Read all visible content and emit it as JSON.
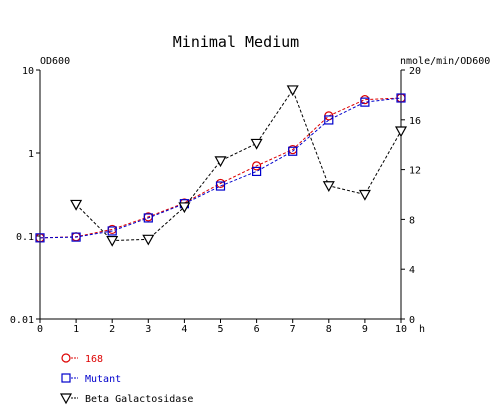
{
  "chart_data": {
    "type": "line",
    "title": "Minimal Medium",
    "x_unit": "h",
    "x": [
      0,
      1,
      2,
      3,
      4,
      5,
      6,
      7,
      8,
      9,
      10
    ],
    "xlim": [
      0,
      10
    ],
    "x_ticks": [
      "0",
      "1",
      "2",
      "3",
      "4",
      "5",
      "6",
      "7",
      "8",
      "9",
      "10"
    ],
    "y_left": {
      "label": "OD600",
      "scale": "log",
      "range": [
        0.01,
        10
      ],
      "ticks": [
        {
          "value": 0.01,
          "label": "0.01"
        },
        {
          "value": 0.1,
          "label": "0.1"
        },
        {
          "value": 1,
          "label": "1"
        },
        {
          "value": 10,
          "label": "10"
        }
      ]
    },
    "y_right": {
      "label": "nmole/min/OD600",
      "scale": "linear",
      "range": [
        0,
        20
      ],
      "ticks": [
        {
          "value": 0,
          "label": "0"
        },
        {
          "value": 4,
          "label": "4"
        },
        {
          "value": 8,
          "label": "8"
        },
        {
          "value": 12,
          "label": "12"
        },
        {
          "value": 16,
          "label": "16"
        },
        {
          "value": 20,
          "label": "20"
        }
      ]
    },
    "series": [
      {
        "name": "168",
        "axis": "left",
        "marker": "circle",
        "color": "#dd0000",
        "x": [
          0,
          1,
          2,
          3,
          4,
          5,
          6,
          7,
          8,
          9,
          10
        ],
        "values": [
          0.095,
          0.098,
          0.12,
          0.17,
          0.25,
          0.43,
          0.7,
          1.1,
          2.8,
          4.4,
          4.6
        ]
      },
      {
        "name": "Mutant",
        "axis": "left",
        "marker": "square",
        "color": "#0000cc",
        "x": [
          0,
          1,
          2,
          3,
          4,
          5,
          6,
          7,
          8,
          9,
          10
        ],
        "values": [
          0.095,
          0.097,
          0.115,
          0.165,
          0.245,
          0.4,
          0.6,
          1.05,
          2.5,
          4.1,
          4.6
        ]
      },
      {
        "name": "Beta Galactosidase",
        "axis": "right",
        "marker": "triangle-down",
        "color": "#000000",
        "x": [
          1,
          2,
          3,
          4,
          5,
          6,
          7,
          8,
          9,
          10
        ],
        "values": [
          9.2,
          6.3,
          6.4,
          9.0,
          12.7,
          14.1,
          18.4,
          10.7,
          10.0,
          15.1
        ]
      }
    ],
    "legend_placement": "bottom-left",
    "grid": false
  }
}
